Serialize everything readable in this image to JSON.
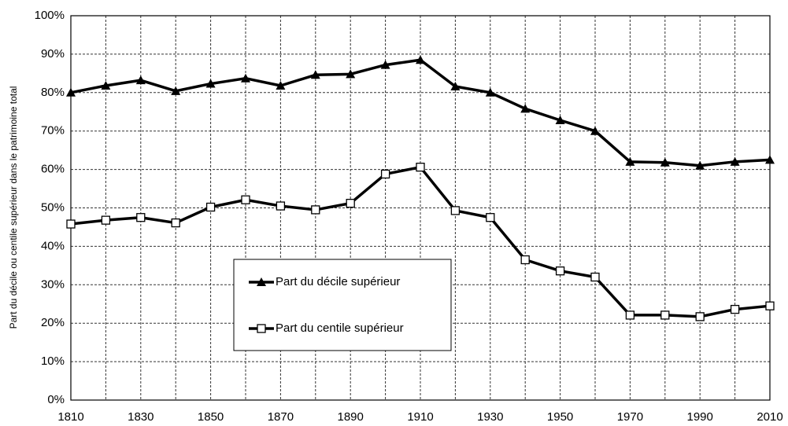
{
  "chart_data": {
    "type": "line",
    "y_label": "Part du décile ou centile supérieur dans le patrimoine total",
    "x": [
      1810,
      1820,
      1830,
      1840,
      1850,
      1860,
      1870,
      1880,
      1890,
      1900,
      1910,
      1920,
      1930,
      1940,
      1950,
      1960,
      1970,
      1980,
      1990,
      2000,
      2010
    ],
    "series": [
      {
        "name": "Part du décile supérieur",
        "color": "#000000",
        "marker": "triangle",
        "values": [
          80,
          81.8,
          83.2,
          80.4,
          82.3,
          83.7,
          81.8,
          84.6,
          84.8,
          87.2,
          88.5,
          81.6,
          80,
          75.8,
          72.8,
          70,
          62,
          61.8,
          61,
          62,
          62.5
        ]
      },
      {
        "name": "Part du centile supérieur",
        "color": "#000000",
        "marker": "square",
        "values": [
          45.8,
          46.8,
          47.5,
          46.1,
          50.2,
          52.1,
          50.5,
          49.5,
          51.2,
          58.8,
          60.6,
          49.3,
          47.5,
          36.5,
          33.6,
          32,
          22.1,
          22.1,
          21.7,
          23.6,
          24.5
        ]
      }
    ],
    "xlim": [
      1810,
      2010
    ],
    "xticks": [
      1810,
      1830,
      1850,
      1870,
      1890,
      1910,
      1930,
      1950,
      1970,
      1990,
      2010
    ],
    "x_minor_ticks": [
      1820,
      1840,
      1860,
      1880,
      1900,
      1920,
      1940,
      1960,
      1980,
      2000
    ],
    "ylim": [
      0,
      100
    ],
    "yticks": [
      {
        "value": 0,
        "label": "0%"
      },
      {
        "value": 10,
        "label": "10%"
      },
      {
        "value": 20,
        "label": "20%"
      },
      {
        "value": 30,
        "label": "30%"
      },
      {
        "value": 40,
        "label": "40%"
      },
      {
        "value": 50,
        "label": "50%"
      },
      {
        "value": 60,
        "label": "60%"
      },
      {
        "value": 70,
        "label": "70%"
      },
      {
        "value": 80,
        "label": "80%"
      },
      {
        "value": 90,
        "label": "90%"
      },
      {
        "value": 100,
        "label": "100%"
      }
    ],
    "grid": true
  }
}
